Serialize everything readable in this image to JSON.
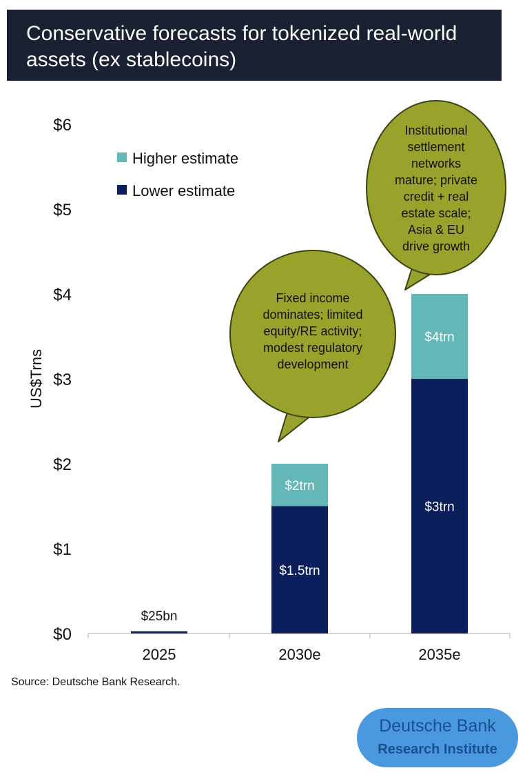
{
  "title": "Conservative forecasts for tokenized real-world assets (ex stablecoins)",
  "source": "Source: Deutsche Bank Research.",
  "logo": {
    "line1": "Deutsche Bank",
    "line2": "Research Institute"
  },
  "colors": {
    "header_bg": "#1a2133",
    "lower": "#0b1f5c",
    "higher": "#63b8b7",
    "bubble_fill": "#99a22b",
    "bubble_stroke": "#3c4210",
    "logo_bg": "#4a98de",
    "logo_text": "#1b4f8f"
  },
  "chart_data": {
    "type": "bar",
    "stacked": true,
    "categories": [
      "2025",
      "2030e",
      "2035e"
    ],
    "series": [
      {
        "name": "Lower estimate",
        "values": [
          0.025,
          1.5,
          3
        ],
        "color": "#0b1f5c",
        "labels": [
          "$25bn",
          "$1.5trn",
          "$3trn"
        ]
      },
      {
        "name": "Higher estimate",
        "values": [
          0,
          0.5,
          1
        ],
        "color": "#63b8b7",
        "labels": [
          "",
          "$2trn",
          "$4trn"
        ]
      }
    ],
    "ylabel": "US$Trns",
    "xlabel": "",
    "ylim": [
      0,
      6
    ],
    "yticks": [
      0,
      1,
      2,
      3,
      4,
      5,
      6
    ],
    "ytick_labels": [
      "$0",
      "$1",
      "$2",
      "$3",
      "$4",
      "$5",
      "$6"
    ],
    "legend_order": [
      "Higher estimate",
      "Lower estimate"
    ],
    "legend_position": "top-left",
    "grid": false,
    "annotations": [
      {
        "category": "2030e",
        "lines": [
          "Fixed income",
          "dominates; limited",
          "equity/RE activity;",
          "modest regulatory",
          "development"
        ]
      },
      {
        "category": "2035e",
        "lines": [
          "Institutional",
          "settlement",
          "networks",
          "mature; private",
          "credit + real",
          "estate scale;",
          "Asia & EU",
          "drive growth"
        ]
      }
    ]
  }
}
